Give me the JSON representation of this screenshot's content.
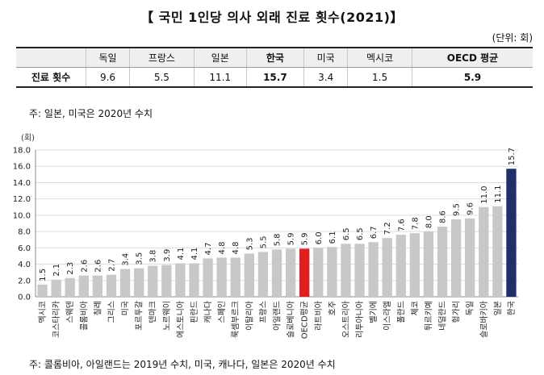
{
  "title": "【 국민 1인당 의사 외래 진료 횟수(2021)】",
  "unit": "(단위: 회)",
  "summary_table": {
    "row_label": "진료 횟수",
    "columns": [
      "독일",
      "프랑스",
      "일본",
      "한국",
      "미국",
      "멕시코",
      "OECD 평균"
    ],
    "values": [
      "9.6",
      "5.5",
      "11.1",
      "15.7",
      "3.4",
      "1.5",
      "5.9"
    ],
    "bold": [
      false,
      false,
      false,
      true,
      false,
      false,
      true
    ]
  },
  "note_top": "주: 일본, 미국은 2020년 수치",
  "note_bottom": "주: 콜롬비아, 아일랜드는 2019년 수치, 미국, 캐나다, 일본은 2020년 수치",
  "colors": {
    "bar": "#c8c8c8",
    "korea": "#1f2f6b",
    "oecd": "#e02020",
    "grid": "#dddddd"
  },
  "chart_data": {
    "type": "bar",
    "ylabel": "(회)",
    "ylim": [
      0,
      18
    ],
    "yticks": [
      "0.0",
      "2.0",
      "4.0",
      "6.0",
      "8.0",
      "10.0",
      "12.0",
      "14.0",
      "16.0",
      "18.0"
    ],
    "grid": true,
    "categories": [
      "멕시코",
      "코스타리카",
      "스웨덴",
      "콜롬비아",
      "칠레",
      "그리스",
      "미국",
      "포르투갈",
      "덴마크",
      "노르웨이",
      "에스토니아",
      "핀란드",
      "캐나다",
      "스페인",
      "룩셈부르크",
      "이탈리아",
      "프랑스",
      "아일랜드",
      "슬로베니아",
      "OECD평균",
      "라트비아",
      "호주",
      "오스트리아",
      "리투아니아",
      "벨기에",
      "이스라엘",
      "폴란드",
      "체코",
      "튀르키예",
      "네덜란드",
      "헝가리",
      "독일",
      "슬로바키아",
      "일본",
      "한국"
    ],
    "values": [
      1.5,
      2.1,
      2.3,
      2.6,
      2.6,
      2.7,
      3.4,
      3.5,
      3.8,
      3.9,
      4.1,
      4.1,
      4.7,
      4.8,
      4.8,
      5.3,
      5.5,
      5.8,
      5.9,
      5.9,
      6.0,
      6.1,
      6.5,
      6.5,
      6.7,
      7.2,
      7.6,
      7.8,
      8.0,
      8.6,
      9.5,
      9.6,
      11.0,
      11.1,
      15.7
    ],
    "labels": [
      "1.5",
      "2.1",
      "2.3",
      "2.6",
      "2.6",
      "2.7",
      "3.4",
      "3.5",
      "3.8",
      "3.9",
      "4.1",
      "4.1",
      "4.7",
      "4.8",
      "4.8",
      "5.3",
      "5.5",
      "5.8",
      "5.9",
      "5.9",
      "6.0",
      "6.1",
      "6.5",
      "6.5",
      "6.7",
      "7.2",
      "7.6",
      "7.8",
      "8.0",
      "8.6",
      "9.5",
      "9.6",
      "11.0",
      "11.1",
      "15.7"
    ],
    "highlight": {
      "OECD평균": "oecd",
      "한국": "korea"
    }
  }
}
